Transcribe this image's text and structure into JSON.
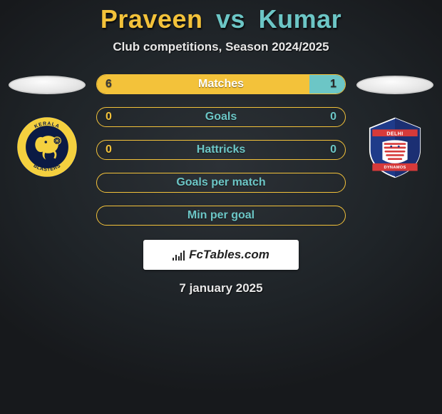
{
  "title": {
    "player1": "Praveen",
    "vs": "vs",
    "player2": "Kumar",
    "player1_color": "#f3c23a",
    "vs_color": "#6cc6c6",
    "player2_color": "#6cc6c6"
  },
  "subtitle": "Club competitions, Season 2024/2025",
  "background": {
    "center": "#2c3136",
    "outer": "#17191c"
  },
  "ellipse": {
    "fill": "#f0f0f0",
    "border": "#cfcfcf"
  },
  "crest_left": {
    "type": "kerala-blasters",
    "outer": "#f4d03f",
    "inner": "#0b1a44",
    "text": "KERALA BLASTERS"
  },
  "crest_right": {
    "type": "delhi-dynamos",
    "blue": "#1f3b8a",
    "red": "#d63a3a",
    "white": "#ffffff",
    "text": "DELHI DYNAMOS"
  },
  "bars": [
    {
      "label": "Matches",
      "left_value": "6",
      "right_value": "1",
      "left_num": 6,
      "right_num": 1,
      "border_color": "#f3c23a",
      "fill_left_color": "#f3c23a",
      "fill_right_color": "#6cc6c6",
      "text_color": "#ffffff",
      "left_text_color": "#3a3a3a",
      "right_text_color": "#2a2a2a"
    },
    {
      "label": "Goals",
      "left_value": "0",
      "right_value": "0",
      "left_num": 0,
      "right_num": 0,
      "border_color": "#f3c23a",
      "fill_left_color": "#f3c23a",
      "fill_right_color": "#6cc6c6",
      "text_color": "#6cc6c6",
      "left_text_color": "#f3c23a",
      "right_text_color": "#6cc6c6"
    },
    {
      "label": "Hattricks",
      "left_value": "0",
      "right_value": "0",
      "left_num": 0,
      "right_num": 0,
      "border_color": "#f3c23a",
      "fill_left_color": "#f3c23a",
      "fill_right_color": "#6cc6c6",
      "text_color": "#6cc6c6",
      "left_text_color": "#f3c23a",
      "right_text_color": "#6cc6c6"
    },
    {
      "label": "Goals per match",
      "left_value": "",
      "right_value": "",
      "left_num": 0,
      "right_num": 0,
      "border_color": "#f3c23a",
      "fill_left_color": "#f3c23a",
      "fill_right_color": "#6cc6c6",
      "text_color": "#6cc6c6",
      "left_text_color": "#f3c23a",
      "right_text_color": "#6cc6c6"
    },
    {
      "label": "Min per goal",
      "left_value": "",
      "right_value": "",
      "left_num": 0,
      "right_num": 0,
      "border_color": "#f3c23a",
      "fill_left_color": "#f3c23a",
      "fill_right_color": "#6cc6c6",
      "text_color": "#6cc6c6",
      "left_text_color": "#f3c23a",
      "right_text_color": "#6cc6c6"
    }
  ],
  "bar_style": {
    "height": 28,
    "radius": 14,
    "label_fontsize": 16
  },
  "watermark": {
    "text": "FcTables.com",
    "bg": "#ffffff",
    "text_color": "#222222",
    "icon_heights": [
      4,
      8,
      6,
      11,
      14
    ]
  },
  "date": "7 january 2025"
}
